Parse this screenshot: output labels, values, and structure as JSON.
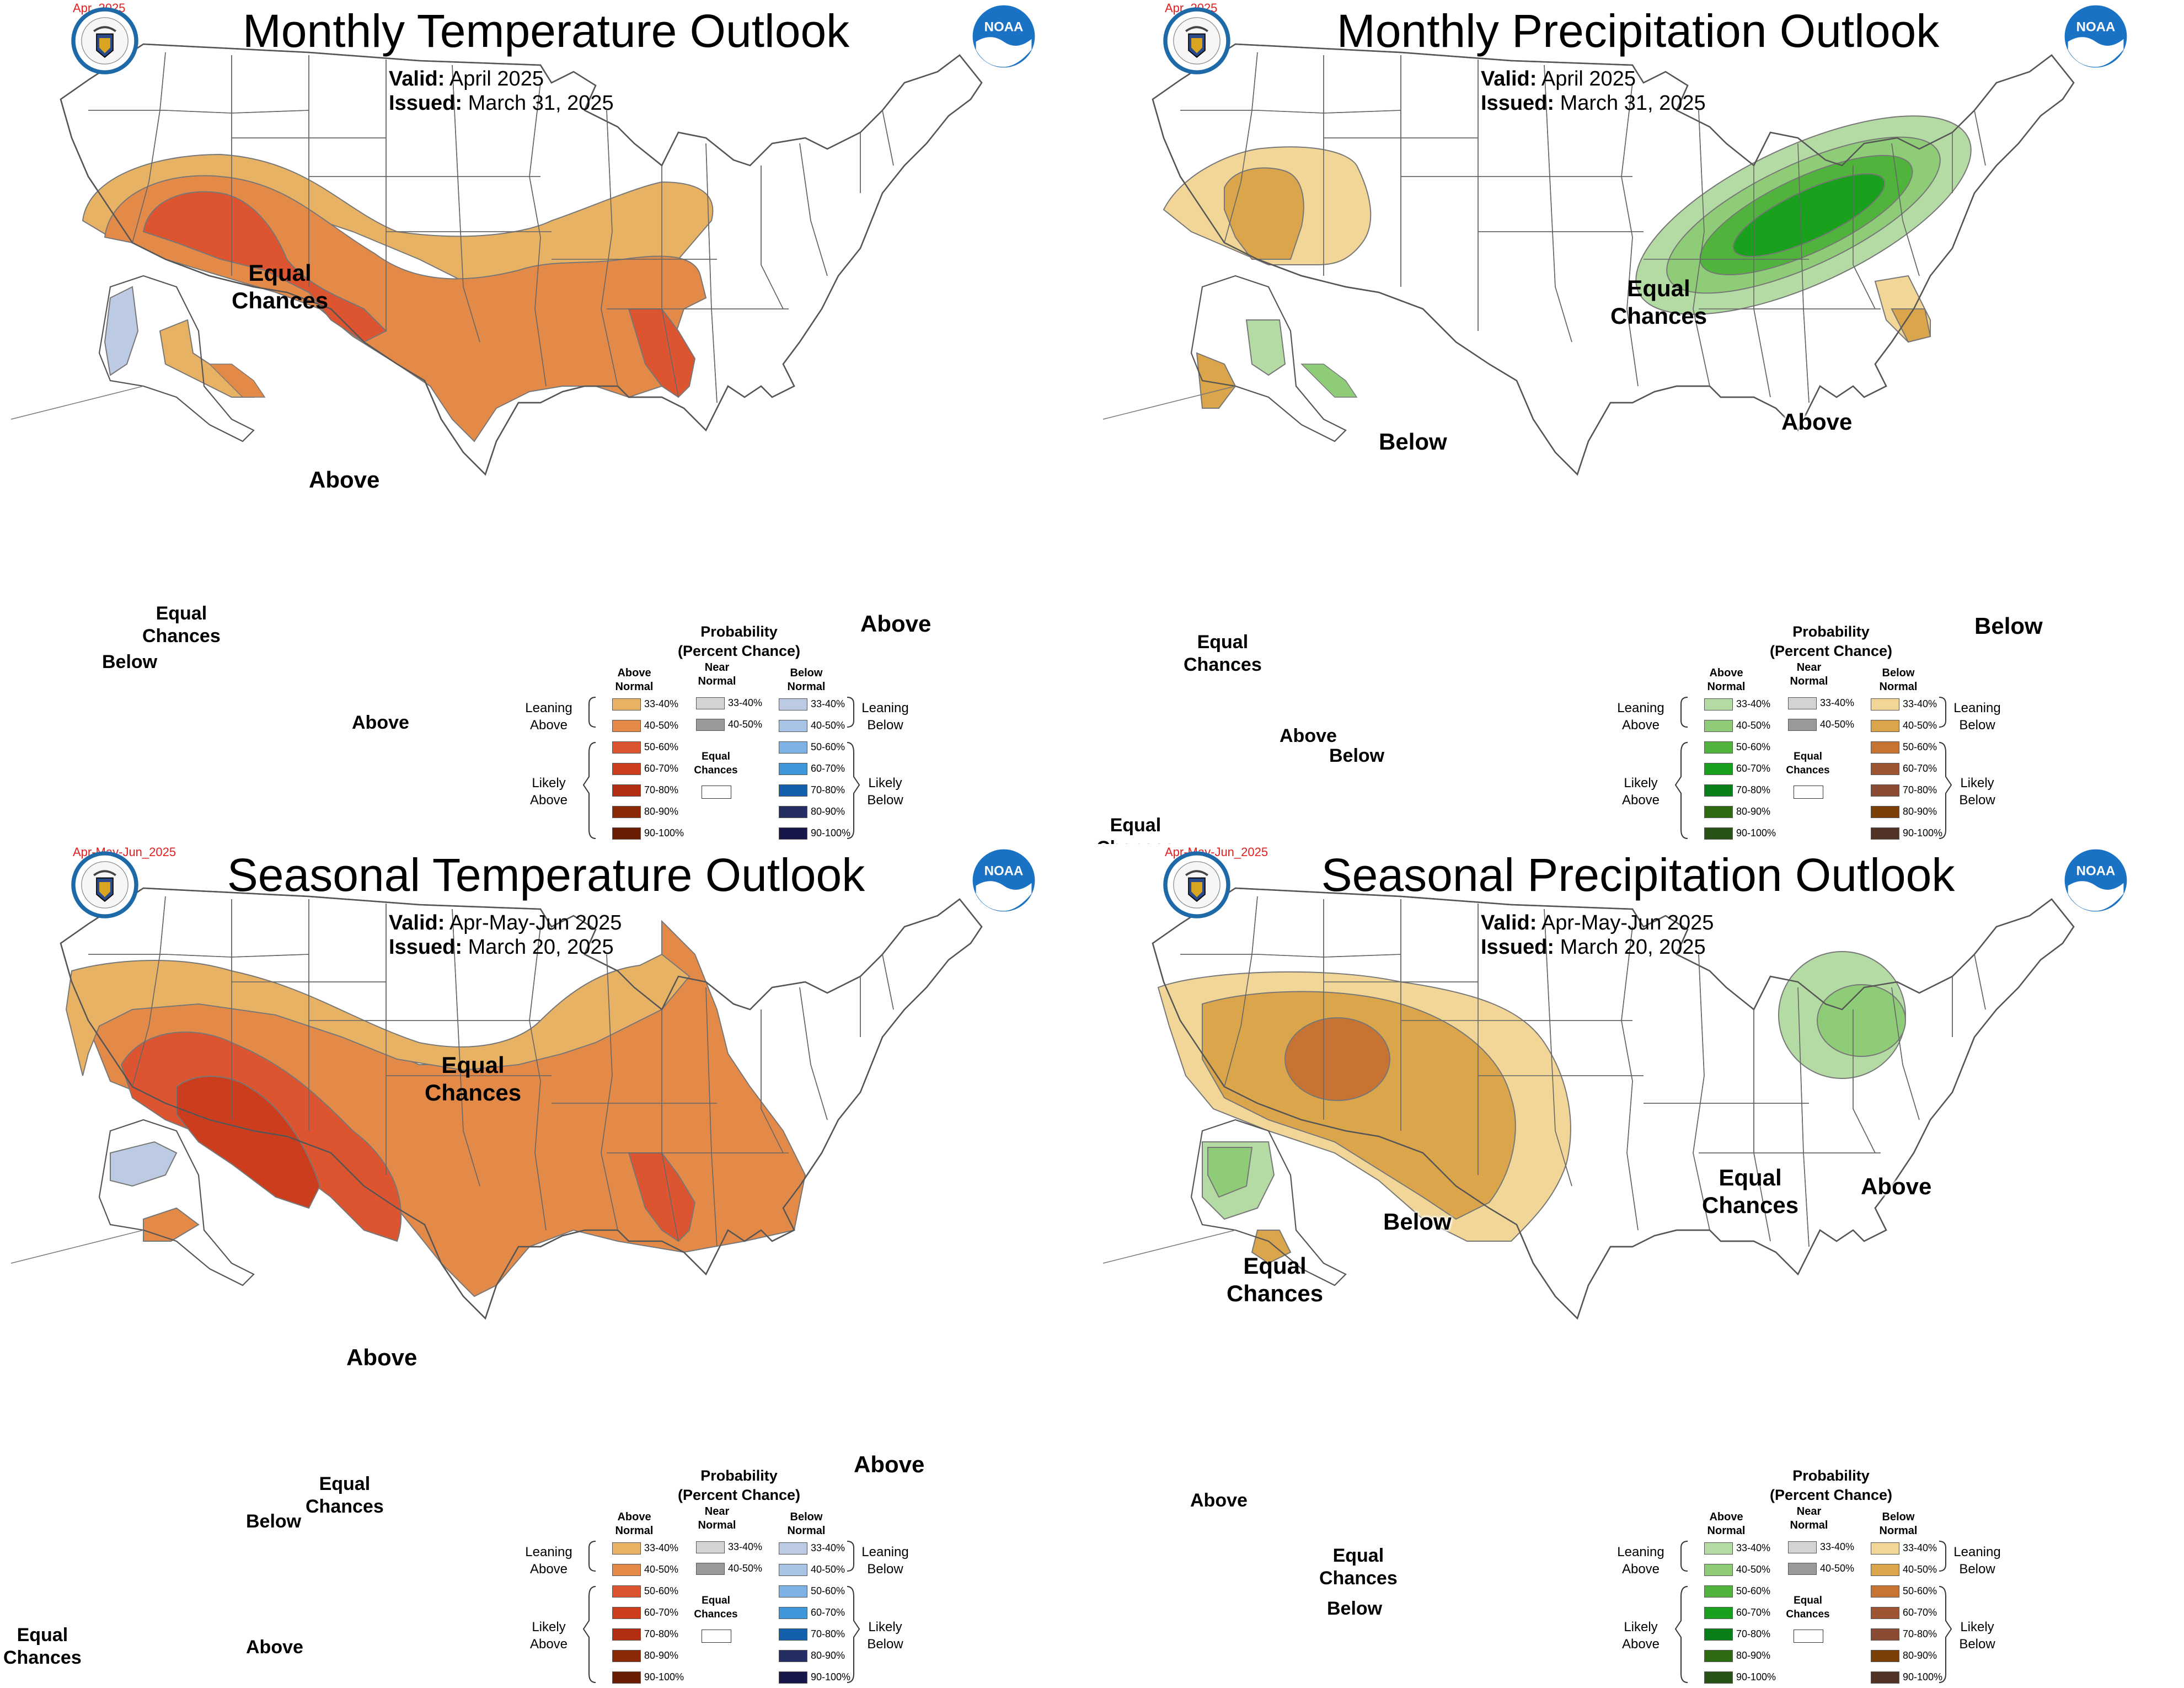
{
  "panels": [
    {
      "id": "monthly-temp",
      "period_tag": "Apr_2025",
      "title": "Monthly Temperature Outlook",
      "valid_label": "Valid:",
      "valid_value": "April 2025",
      "issued_label": "Issued:",
      "issued_value": "March 31, 2025",
      "labels": {
        "ec_main": [
          "Equal",
          "Chances"
        ],
        "above_main": "Above",
        "above_fl": "Above",
        "ak_below": "Below",
        "ak_ec": [
          "Equal",
          "Chances"
        ],
        "ak_above": "Above"
      }
    },
    {
      "id": "monthly-precip",
      "period_tag": "Apr_2025",
      "title": "Monthly Precipitation Outlook",
      "valid_label": "Valid:",
      "valid_value": "April 2025",
      "issued_label": "Issued:",
      "issued_value": "March 31, 2025",
      "labels": {
        "ec_main": [
          "Equal",
          "Chances"
        ],
        "below_main": "Below",
        "above_main": "Above",
        "below_fl": "Below",
        "ak_ec": [
          "Equal",
          "Chances"
        ],
        "ak_above": "Above",
        "ak_below": "Below",
        "ak_ec2": [
          "Equal",
          "Chances"
        ]
      }
    },
    {
      "id": "seasonal-temp",
      "period_tag": "Apr-May-Jun_2025",
      "title": "Seasonal Temperature Outlook",
      "valid_label": "Valid:",
      "valid_value": "Apr-May-Jun 2025",
      "issued_label": "Issued:",
      "issued_value": "March 20, 2025",
      "labels": {
        "ec_main": [
          "Equal",
          "Chances"
        ],
        "above_main": "Above",
        "above_fl": "Above",
        "ak_below": "Below",
        "ak_ec": [
          "Equal",
          "Chances"
        ],
        "ak_above": "Above",
        "ak_ec2": [
          "Equal",
          "Chances"
        ]
      }
    },
    {
      "id": "seasonal-precip",
      "period_tag": "Apr-May-Jun_2025",
      "title": "Seasonal Precipitation Outlook",
      "valid_label": "Valid:",
      "valid_value": "Apr-May-Jun 2025",
      "issued_label": "Issued:",
      "issued_value": "March 20, 2025",
      "labels": {
        "below_main": "Below",
        "ec_west": [
          "Equal",
          "Chances"
        ],
        "ec_east": [
          "Equal",
          "Chances"
        ],
        "above_main": "Above",
        "ak_above": "Above",
        "ak_ec": [
          "Equal",
          "Chances"
        ],
        "ak_below": "Below"
      }
    }
  ],
  "legend": {
    "title_line1": "Probability",
    "title_line2": "(Percent Chance)",
    "col_above": [
      "Above",
      "Normal"
    ],
    "col_near": [
      "Near",
      "Normal"
    ],
    "col_below": [
      "Below",
      "Normal"
    ],
    "leaning_above": [
      "Leaning",
      "Above"
    ],
    "likely_above": [
      "Likely",
      "Above"
    ],
    "leaning_below": [
      "Leaning",
      "Below"
    ],
    "likely_below": [
      "Likely",
      "Below"
    ],
    "equal_chances": [
      "Equal",
      "Chances"
    ],
    "ranges": [
      "33-40%",
      "40-50%",
      "50-60%",
      "60-70%",
      "70-80%",
      "80-90%",
      "90-100%"
    ],
    "near_ranges": [
      "33-40%",
      "40-50%"
    ],
    "temp_above_colors": [
      "#e8b265",
      "#e48a48",
      "#dc5530",
      "#cc3d1e",
      "#b22d12",
      "#8c2a08",
      "#6b1d04"
    ],
    "temp_below_colors": [
      "#bccbe3",
      "#a8c4e6",
      "#7eb2e6",
      "#3f96d8",
      "#1260ab",
      "#252e62",
      "#161648"
    ],
    "precip_above_colors": [
      "#b4dba4",
      "#8ecc78",
      "#4fb33c",
      "#19a01c",
      "#07801a",
      "#2c6a14",
      "#285215"
    ],
    "precip_below_colors": [
      "#f1d697",
      "#daa54b",
      "#c77334",
      "#9d5533",
      "#8a4b33",
      "#7a3f07",
      "#513227"
    ],
    "near_colors": [
      "#d4d4d4",
      "#9a9a9a"
    ]
  }
}
